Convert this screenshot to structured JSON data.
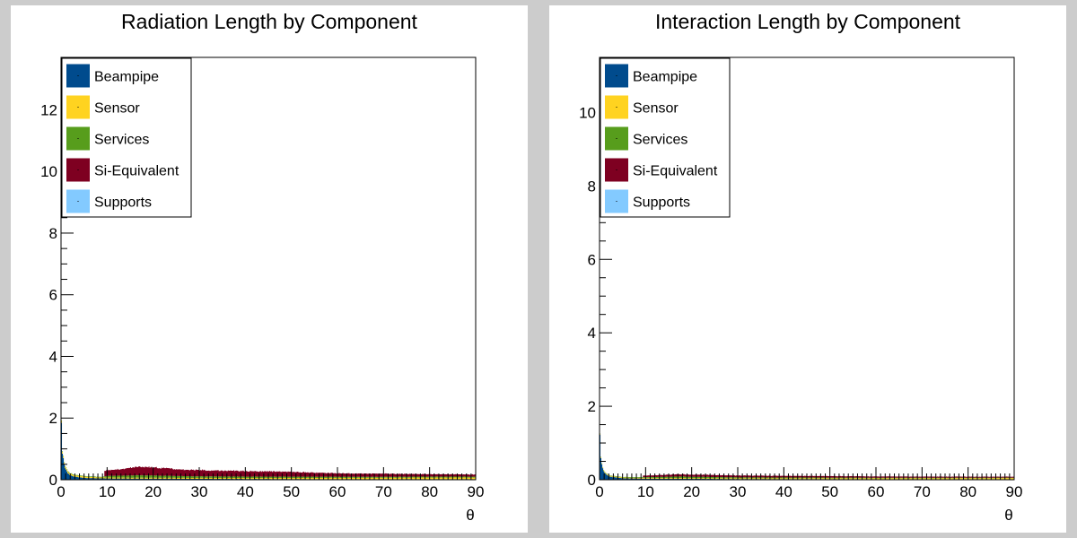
{
  "chart_data": [
    {
      "type": "area",
      "stacked": true,
      "title": "Radiation Length by Component",
      "xlabel": "θ",
      "ylabel": "",
      "xlim": [
        0,
        90
      ],
      "ylim": [
        0,
        13.7
      ],
      "x_ticks": [
        0,
        10,
        20,
        30,
        40,
        50,
        60,
        70,
        80,
        90
      ],
      "y_ticks": [
        0,
        2,
        4,
        6,
        8,
        10,
        12
      ],
      "legend_position": "top-left",
      "series": [
        {
          "name": "Beampipe",
          "color": "#004b8d",
          "values": [
            [
              0,
              2.6
            ],
            [
              0.3,
              0.9
            ],
            [
              0.6,
              0.55
            ],
            [
              1,
              0.35
            ],
            [
              1.5,
              0.22
            ],
            [
              2,
              0.15
            ],
            [
              3,
              0.1
            ],
            [
              5,
              0.06
            ],
            [
              10,
              0.04
            ],
            [
              30,
              0.03
            ],
            [
              60,
              0.02
            ],
            [
              90,
              0.02
            ]
          ]
        },
        {
          "name": "Sensor",
          "color": "#ffd320",
          "values": [
            [
              0,
              0.05
            ],
            [
              9,
              0.03
            ],
            [
              10,
              0.03
            ],
            [
              20,
              0.03
            ],
            [
              40,
              0.03
            ],
            [
              60,
              0.04
            ],
            [
              80,
              0.05
            ],
            [
              90,
              0.05
            ]
          ]
        },
        {
          "name": "Services",
          "color": "#579d1c",
          "values": [
            [
              0,
              0.02
            ],
            [
              9,
              0.02
            ],
            [
              10,
              0.05
            ],
            [
              17,
              0.08
            ],
            [
              20,
              0.07
            ],
            [
              30,
              0.05
            ],
            [
              50,
              0.04
            ],
            [
              70,
              0.03
            ],
            [
              90,
              0.03
            ]
          ]
        },
        {
          "name": "Si-Equivalent",
          "color": "#7e0021",
          "values": [
            [
              0,
              0
            ],
            [
              9.3,
              0
            ],
            [
              9.5,
              0.18
            ],
            [
              12,
              0.2
            ],
            [
              17,
              0.28
            ],
            [
              19,
              0.27
            ],
            [
              25,
              0.22
            ],
            [
              30,
              0.2
            ],
            [
              40,
              0.18
            ],
            [
              50,
              0.16
            ],
            [
              60,
              0.11
            ],
            [
              70,
              0.1
            ],
            [
              80,
              0.08
            ],
            [
              90,
              0.07
            ]
          ]
        },
        {
          "name": "Supports",
          "color": "#83caff",
          "values": [
            [
              0,
              0
            ],
            [
              90,
              0
            ]
          ]
        }
      ]
    },
    {
      "type": "area",
      "stacked": true,
      "title": "Interaction Length by Component",
      "xlabel": "θ",
      "ylabel": "",
      "xlim": [
        0,
        90
      ],
      "ylim": [
        0,
        11.5
      ],
      "x_ticks": [
        0,
        10,
        20,
        30,
        40,
        50,
        60,
        70,
        80,
        90
      ],
      "y_ticks": [
        0,
        2,
        4,
        6,
        8,
        10
      ],
      "legend_position": "top-left",
      "series": [
        {
          "name": "Beampipe",
          "color": "#004b8d",
          "values": [
            [
              0,
              1.7
            ],
            [
              0.3,
              0.6
            ],
            [
              0.6,
              0.35
            ],
            [
              1,
              0.22
            ],
            [
              1.5,
              0.14
            ],
            [
              2,
              0.1
            ],
            [
              3,
              0.07
            ],
            [
              5,
              0.04
            ],
            [
              10,
              0.03
            ],
            [
              30,
              0.02
            ],
            [
              60,
              0.015
            ],
            [
              90,
              0.015
            ]
          ]
        },
        {
          "name": "Sensor",
          "color": "#ffd320",
          "values": [
            [
              0,
              0.02
            ],
            [
              10,
              0.02
            ],
            [
              30,
              0.02
            ],
            [
              60,
              0.025
            ],
            [
              90,
              0.03
            ]
          ]
        },
        {
          "name": "Services",
          "color": "#579d1c",
          "values": [
            [
              0,
              0.01
            ],
            [
              10,
              0.02
            ],
            [
              17,
              0.04
            ],
            [
              30,
              0.025
            ],
            [
              60,
              0.015
            ],
            [
              90,
              0.012
            ]
          ]
        },
        {
          "name": "Si-Equivalent",
          "color": "#7e0021",
          "values": [
            [
              0,
              0
            ],
            [
              9.3,
              0
            ],
            [
              9.5,
              0.04
            ],
            [
              17,
              0.06
            ],
            [
              30,
              0.05
            ],
            [
              50,
              0.04
            ],
            [
              70,
              0.03
            ],
            [
              90,
              0.025
            ]
          ]
        },
        {
          "name": "Supports",
          "color": "#83caff",
          "values": [
            [
              0,
              0
            ],
            [
              90,
              0
            ]
          ]
        }
      ]
    }
  ]
}
